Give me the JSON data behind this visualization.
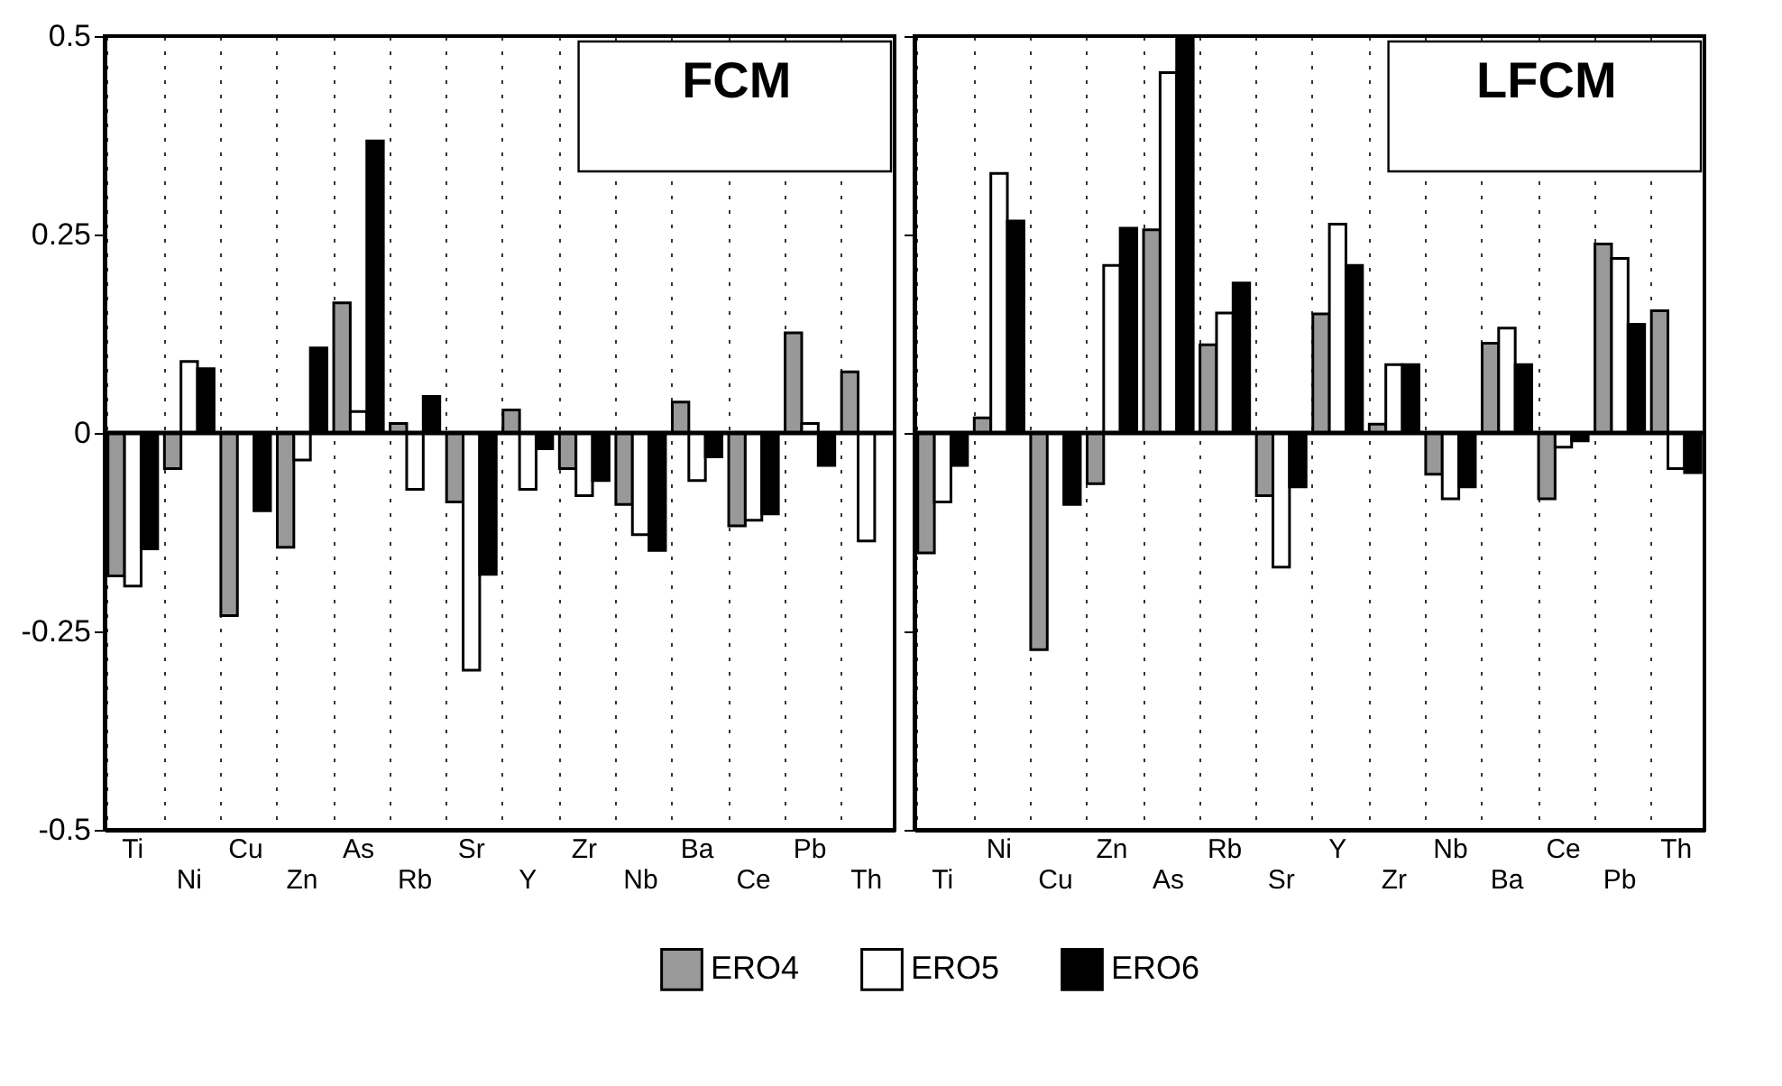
{
  "chart_data": [
    {
      "type": "bar",
      "title": "FCM",
      "categories": [
        "Ti",
        "Ni",
        "Cu",
        "Zn",
        "As",
        "Rb",
        "Sr",
        "Y",
        "Zr",
        "Nb",
        "Ba",
        "Ce",
        "Pb",
        "Th"
      ],
      "series": [
        {
          "name": "ERO4",
          "color": "#999999",
          "values": [
            -0.18,
            -0.045,
            -0.23,
            -0.144,
            0.164,
            0.012,
            -0.087,
            0.029,
            -0.045,
            -0.09,
            0.039,
            -0.117,
            0.126,
            0.077
          ]
        },
        {
          "name": "ERO5",
          "color": "#ffffff",
          "values": [
            -0.193,
            0.09,
            null,
            -0.034,
            0.027,
            -0.071,
            -0.299,
            -0.071,
            -0.079,
            -0.128,
            -0.06,
            -0.11,
            0.012,
            -0.136
          ]
        },
        {
          "name": "ERO6",
          "color": "#000000",
          "values": [
            -0.146,
            0.081,
            -0.098,
            0.107,
            0.368,
            0.046,
            -0.178,
            -0.02,
            -0.06,
            -0.148,
            -0.03,
            -0.102,
            -0.041,
            null
          ]
        }
      ],
      "ylim": [
        -0.5,
        0.5
      ],
      "yticks": [
        -0.5,
        -0.25,
        0,
        0.25,
        0.5
      ],
      "grid": "x",
      "legend": "bottom",
      "ref_lines": [
        {
          "axis": "y",
          "value": 0
        }
      ]
    },
    {
      "type": "bar",
      "title": "LFCM",
      "categories": [
        "Ti",
        "Ni",
        "Cu",
        "Zn",
        "As",
        "Rb",
        "Sr",
        "Y",
        "Zr",
        "Nb",
        "Ba",
        "Ce",
        "Pb",
        "Th"
      ],
      "series": [
        {
          "name": "ERO4",
          "color": "#999999",
          "values": [
            -0.151,
            0.019,
            -0.273,
            -0.064,
            0.256,
            0.111,
            -0.079,
            0.15,
            0.011,
            -0.052,
            0.113,
            -0.083,
            0.238,
            0.154
          ]
        },
        {
          "name": "ERO5",
          "color": "#ffffff",
          "values": [
            -0.087,
            0.327,
            null,
            0.211,
            0.454,
            0.151,
            -0.169,
            0.263,
            0.086,
            -0.083,
            0.132,
            -0.018,
            0.22,
            -0.045
          ]
        },
        {
          "name": "ERO6",
          "color": "#000000",
          "values": [
            -0.041,
            0.267,
            -0.09,
            0.258,
            0.5,
            0.189,
            -0.068,
            0.211,
            0.086,
            -0.068,
            0.086,
            -0.01,
            0.137,
            -0.05
          ]
        }
      ],
      "ylim": [
        -0.5,
        0.5
      ],
      "yticks": [
        -0.5,
        -0.25,
        0,
        0.25,
        0.5
      ],
      "grid": "x",
      "legend": "bottom",
      "tick_labels": "x",
      "ref_lines": [
        {
          "axis": "y",
          "value": 0
        }
      ]
    }
  ]
}
